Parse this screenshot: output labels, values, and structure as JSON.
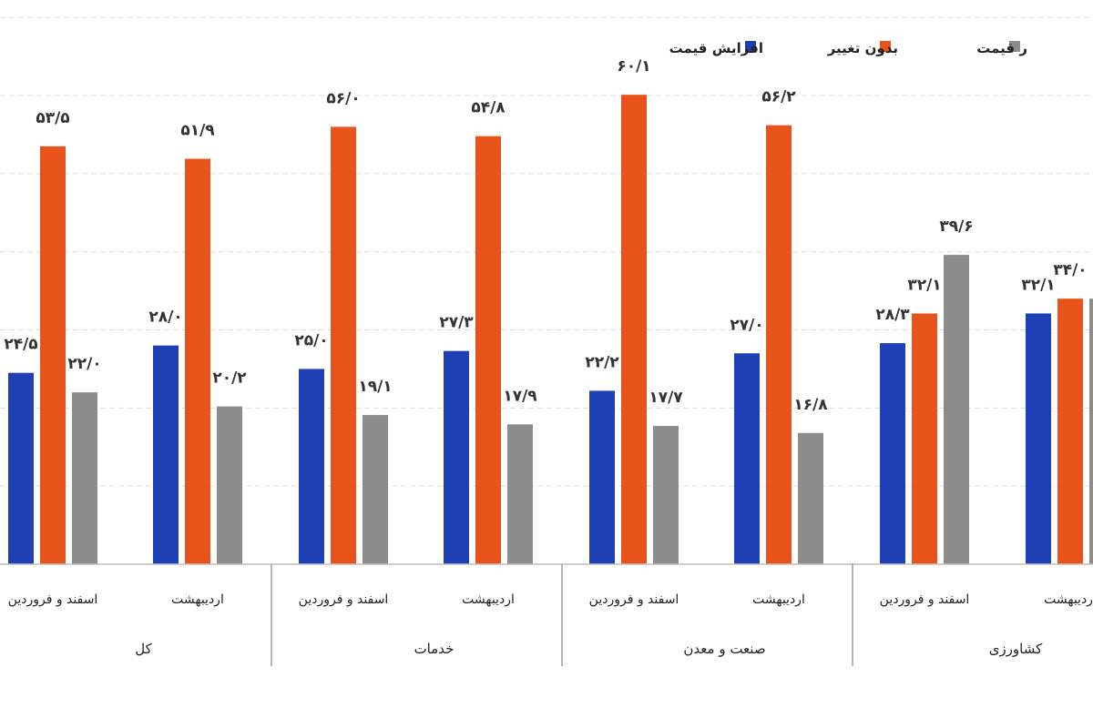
{
  "chart_data": {
    "type": "bar",
    "groups": [
      {
        "label": "کل",
        "categories": [
          {
            "label": "اسفند و فروردین",
            "values": [
              24.5,
              53.5,
              22.0
            ],
            "labels": [
              "۲۴/۵",
              "۵۳/۵",
              "۲۲/۰"
            ]
          },
          {
            "label": "اردیبهشت",
            "values": [
              28.0,
              51.9,
              20.2
            ],
            "labels": [
              "۲۸/۰",
              "۵۱/۹",
              "۲۰/۲"
            ]
          }
        ]
      },
      {
        "label": "خدمات",
        "categories": [
          {
            "label": "اسفند و فروردین",
            "values": [
              25.0,
              56.0,
              19.1
            ],
            "labels": [
              "۲۵/۰",
              "۵۶/۰",
              "۱۹/۱"
            ]
          },
          {
            "label": "اردیبهشت",
            "values": [
              27.3,
              54.8,
              17.9
            ],
            "labels": [
              "۲۷/۳",
              "۵۴/۸",
              "۱۷/۹"
            ]
          }
        ]
      },
      {
        "label": "صنعت و معدن",
        "categories": [
          {
            "label": "اسفند و فروردین",
            "values": [
              22.2,
              60.1,
              17.7
            ],
            "labels": [
              "۲۲/۲",
              "۶۰/۱",
              "۱۷/۷"
            ]
          },
          {
            "label": "اردیبهشت",
            "values": [
              27.0,
              56.2,
              16.8
            ],
            "labels": [
              "۲۷/۰",
              "۵۶/۲",
              "۱۶/۸"
            ]
          }
        ]
      },
      {
        "label": "کشاورزی",
        "categories": [
          {
            "label": "اسفند و فروردین",
            "values": [
              28.3,
              32.1,
              39.6
            ],
            "labels": [
              "۲۸/۳",
              "۳۲/۱",
              "۳۹/۶"
            ]
          },
          {
            "label": "اردیبهشت",
            "values": [
              32.1,
              34.0,
              34.0
            ],
            "labels": [
              "۳۲/۱",
              "۳۴/۰",
              ""
            ]
          }
        ]
      }
    ],
    "series": [
      {
        "name": "افزایش قیمت",
        "color": "#1f3fb4"
      },
      {
        "name": "بدون تغییر",
        "color": "#e8531b"
      },
      {
        "name": "کاهش قیمت",
        "color": "#8c8c8c"
      }
    ],
    "legend_visible": [
      "افزایش قیمت",
      "بدون تغییر",
      "ر قیمت"
    ],
    "ylim": [
      0,
      70
    ],
    "grid": true,
    "legend_position": "top-right"
  }
}
